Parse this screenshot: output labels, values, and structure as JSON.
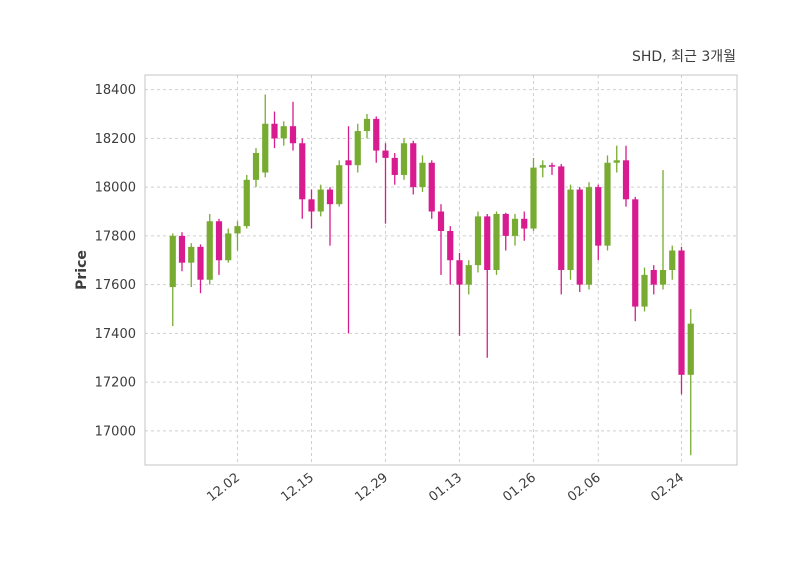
{
  "header": {
    "title": "SHD, 최근 3개월"
  },
  "chart_data": {
    "type": "candlestick",
    "title": "SHD, 최근 3개월",
    "xlabel": "",
    "ylabel": "Price",
    "grid": true,
    "legend": "none",
    "y_ticks": [
      17000,
      17200,
      17400,
      17600,
      17800,
      18000,
      18200,
      18400
    ],
    "ylim": [
      16860,
      18460
    ],
    "x_tick_labels": [
      "12.02",
      "12.15",
      "12.29",
      "01.13",
      "01.26",
      "02.06",
      "02.24"
    ],
    "x_tick_indices": [
      7,
      15,
      23,
      31,
      39,
      46,
      55
    ],
    "colors": {
      "up": "#77ab31",
      "down": "#d81b8f",
      "grid": "#cfcfcf",
      "border": "#c6c6c6",
      "text": "#3d3d3d",
      "background": "#ffffff"
    },
    "ohlc_format": [
      "open",
      "high",
      "low",
      "close"
    ],
    "candles": [
      [
        17590,
        17810,
        17430,
        17800
      ],
      [
        17800,
        17815,
        17655,
        17690
      ],
      [
        17690,
        17770,
        17590,
        17755
      ],
      [
        17755,
        17765,
        17565,
        17620
      ],
      [
        17620,
        17890,
        17600,
        17860
      ],
      [
        17860,
        17870,
        17640,
        17700
      ],
      [
        17700,
        17830,
        17690,
        17810
      ],
      [
        17810,
        17860,
        17740,
        17840
      ],
      [
        17840,
        18050,
        17830,
        18030
      ],
      [
        18030,
        18160,
        18000,
        18140
      ],
      [
        18060,
        18380,
        18040,
        18260
      ],
      [
        18260,
        18310,
        18160,
        18200
      ],
      [
        18200,
        18270,
        18170,
        18250
      ],
      [
        18250,
        18350,
        18150,
        18180
      ],
      [
        18180,
        18200,
        17870,
        17950
      ],
      [
        17950,
        17990,
        17830,
        17900
      ],
      [
        17900,
        18010,
        17880,
        17990
      ],
      [
        17990,
        18000,
        17760,
        17930
      ],
      [
        17930,
        18110,
        17920,
        18090
      ],
      [
        18110,
        18250,
        17400,
        18090
      ],
      [
        18090,
        18260,
        18060,
        18230
      ],
      [
        18230,
        18300,
        18200,
        18280
      ],
      [
        18280,
        18290,
        18100,
        18150
      ],
      [
        18150,
        18180,
        17850,
        18120
      ],
      [
        18120,
        18140,
        18010,
        18050
      ],
      [
        18050,
        18200,
        18030,
        18180
      ],
      [
        18180,
        18190,
        17970,
        18000
      ],
      [
        18000,
        18130,
        17980,
        18100
      ],
      [
        18100,
        18110,
        17870,
        17900
      ],
      [
        17900,
        17930,
        17640,
        17820
      ],
      [
        17820,
        17840,
        17600,
        17700
      ],
      [
        17700,
        17730,
        17390,
        17600
      ],
      [
        17600,
        17700,
        17560,
        17680
      ],
      [
        17680,
        17900,
        17650,
        17880
      ],
      [
        17880,
        17890,
        17300,
        17660
      ],
      [
        17660,
        17900,
        17640,
        17890
      ],
      [
        17890,
        17895,
        17740,
        17800
      ],
      [
        17800,
        17890,
        17760,
        17870
      ],
      [
        17870,
        17900,
        17780,
        17830
      ],
      [
        17830,
        18120,
        17820,
        18080
      ],
      [
        18080,
        18110,
        18040,
        18090
      ],
      [
        18090,
        18100,
        18050,
        18085
      ],
      [
        18085,
        18095,
        17560,
        17660
      ],
      [
        17660,
        18010,
        17620,
        17990
      ],
      [
        17990,
        18000,
        17570,
        17600
      ],
      [
        17600,
        18020,
        17580,
        18000
      ],
      [
        18000,
        18010,
        17700,
        17760
      ],
      [
        17760,
        18130,
        17740,
        18100
      ],
      [
        18100,
        18170,
        18060,
        18110
      ],
      [
        18110,
        18170,
        17920,
        17950
      ],
      [
        17950,
        17960,
        17450,
        17510
      ],
      [
        17510,
        17670,
        17490,
        17640
      ],
      [
        17660,
        17680,
        17560,
        17600
      ],
      [
        17600,
        18070,
        17580,
        17660
      ],
      [
        17660,
        17760,
        17620,
        17740
      ],
      [
        17740,
        17755,
        17150,
        17230
      ],
      [
        17230,
        17500,
        16900,
        17440
      ]
    ]
  }
}
